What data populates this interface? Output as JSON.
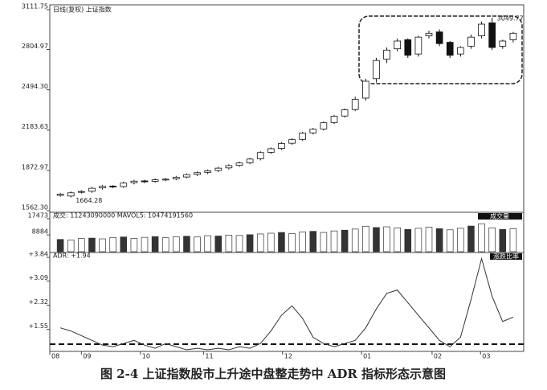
{
  "chart_data": [
    {
      "type": "candlestick",
      "title": "日线(复权) 上证指数",
      "annotations": [
        "3049.77",
        "1664.28"
      ],
      "xlim": [
        -1,
        44
      ],
      "ylim": [
        1562.3,
        3111.75
      ],
      "yticks": [
        {
          "value": 1562.3,
          "label": "1562.30"
        },
        {
          "value": 1872.97,
          "label": "1872.97"
        },
        {
          "value": 2183.63,
          "label": "2183.63"
        },
        {
          "value": 2494.3,
          "label": "2494.30"
        },
        {
          "value": 2804.97,
          "label": "2804.97"
        },
        {
          "value": 3111.75,
          "label": "3111.75"
        }
      ],
      "open": [
        1680,
        1675,
        1705,
        1712,
        1738,
        1752,
        1748,
        1778,
        1792,
        1788,
        1802,
        1808,
        1822,
        1842,
        1858,
        1872,
        1892,
        1912,
        1932,
        1962,
        2012,
        2042,
        2082,
        2112,
        2162,
        2192,
        2242,
        2292,
        2342,
        2430,
        2580,
        2730,
        2810,
        2880,
        2770,
        2910,
        2940,
        2860,
        2770,
        2830,
        2910,
        3010,
        2830,
        2880
      ],
      "high": [
        1700,
        1710,
        1720,
        1745,
        1760,
        1760,
        1785,
        1800,
        1800,
        1810,
        1815,
        1830,
        1850,
        1865,
        1880,
        1900,
        1920,
        1940,
        1970,
        2020,
        2050,
        2090,
        2120,
        2170,
        2200,
        2250,
        2300,
        2350,
        2440,
        2580,
        2740,
        2820,
        2890,
        2890,
        2910,
        2950,
        2960,
        2870,
        2830,
        2920,
        3020,
        3049.77,
        2880,
        2940
      ],
      "low": [
        1670,
        1664.28,
        1695,
        1700,
        1725,
        1735,
        1738,
        1765,
        1775,
        1778,
        1790,
        1798,
        1812,
        1830,
        1845,
        1860,
        1880,
        1900,
        1920,
        1950,
        2000,
        2030,
        2070,
        2100,
        2150,
        2180,
        2230,
        2280,
        2330,
        2410,
        2550,
        2700,
        2790,
        2740,
        2750,
        2890,
        2830,
        2740,
        2750,
        2810,
        2890,
        2800,
        2810,
        2860
      ],
      "close": [
        1690,
        1700,
        1710,
        1735,
        1750,
        1745,
        1775,
        1790,
        1785,
        1800,
        1805,
        1820,
        1840,
        1855,
        1870,
        1890,
        1910,
        1930,
        1960,
        2010,
        2040,
        2080,
        2110,
        2160,
        2190,
        2240,
        2290,
        2340,
        2420,
        2560,
        2720,
        2800,
        2870,
        2760,
        2900,
        2930,
        2850,
        2760,
        2820,
        2900,
        3000,
        2820,
        2870,
        2930
      ]
    },
    {
      "type": "bar",
      "title": "成交: 11243090000 MAVOL5: 10474191560",
      "badge": "成交量",
      "xlim": [
        -1,
        44
      ],
      "ylim": [
        0,
        17473
      ],
      "yticks": [
        8884,
        17473
      ],
      "values": [
        6500,
        6200,
        7000,
        7200,
        6800,
        7500,
        7800,
        7000,
        7600,
        8000,
        7400,
        7900,
        8200,
        7800,
        8500,
        8300,
        8800,
        8600,
        9000,
        9400,
        9800,
        10200,
        9600,
        10500,
        10800,
        10200,
        11000,
        11400,
        12000,
        13500,
        12800,
        13200,
        12600,
        11800,
        12400,
        13000,
        12200,
        11600,
        12400,
        13600,
        14800,
        12600,
        11800,
        12200
      ]
    },
    {
      "type": "line",
      "title": "ADR: +1.94",
      "badge": "涨跌比率",
      "color": "#333333",
      "xlim": [
        -1,
        44
      ],
      "ylim": [
        0.85,
        3.97
      ],
      "reference_line": 1.08,
      "yticks": [
        {
          "value": 1.55,
          "label": "+1.55"
        },
        {
          "value": 2.32,
          "label": "+2.32"
        },
        {
          "value": 3.09,
          "label": "+3.09"
        },
        {
          "value": 3.84,
          "label": "+3.84"
        }
      ],
      "xticks": [
        {
          "value": -1,
          "label": "08"
        },
        {
          "value": 2,
          "label": "09"
        },
        {
          "value": 7.6,
          "label": "10"
        },
        {
          "value": 13.6,
          "label": "11"
        },
        {
          "value": 21.1,
          "label": "12"
        },
        {
          "value": 28.6,
          "label": "01"
        },
        {
          "value": 35.3,
          "label": "02"
        },
        {
          "value": 39.9,
          "label": "03"
        }
      ],
      "values": [
        1.6,
        1.5,
        1.35,
        1.2,
        1.05,
        1.0,
        1.1,
        1.2,
        1.05,
        0.95,
        1.1,
        1.0,
        0.9,
        0.95,
        0.9,
        0.95,
        0.9,
        1.0,
        0.95,
        1.1,
        1.5,
        2.0,
        2.3,
        1.9,
        1.3,
        1.1,
        1.0,
        1.1,
        1.2,
        1.6,
        2.2,
        2.7,
        2.8,
        2.4,
        2.0,
        1.6,
        1.2,
        1.0,
        1.3,
        2.5,
        3.8,
        2.6,
        1.8,
        1.94
      ]
    }
  ],
  "caption": "图 2-4   上证指数股市上升途中盘整走势中 ADR 指标形态示意图"
}
